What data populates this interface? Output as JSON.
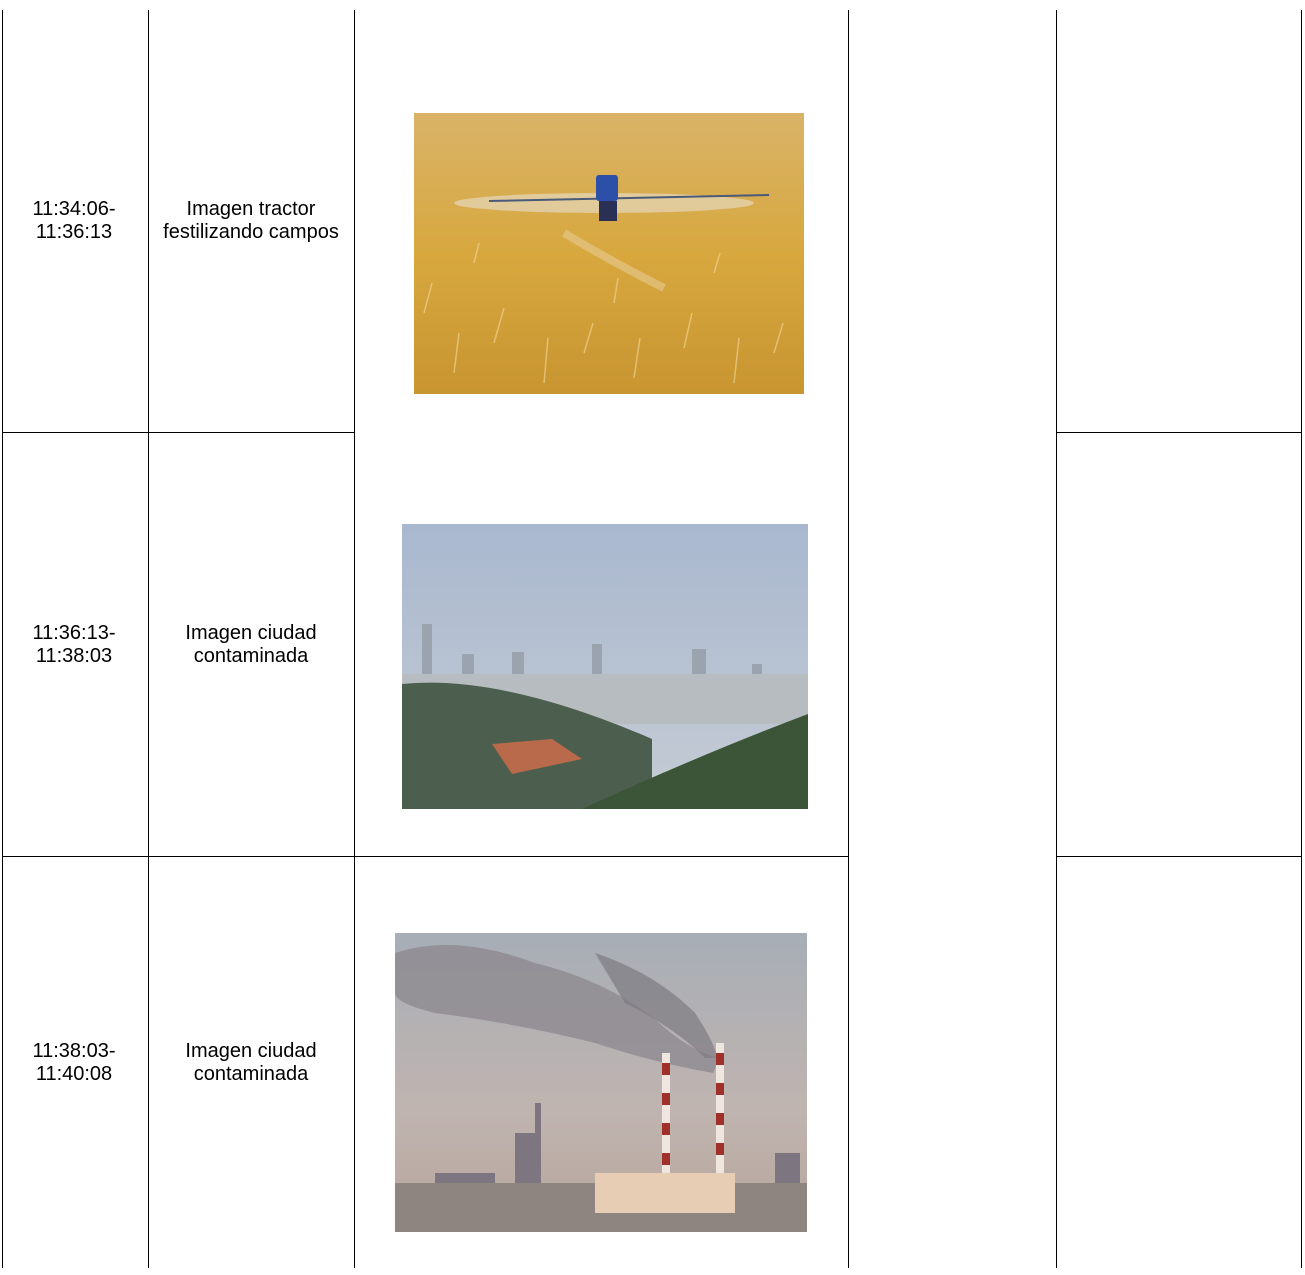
{
  "table": {
    "rows": [
      {
        "time": "11:34:06-11:36:13",
        "description": "Imagen tractor festilizando campos"
      },
      {
        "time": "11:36:13-11:38:03",
        "description": "Imagen ciudad contaminada"
      },
      {
        "time": "11:38:03-11:40:08",
        "description": "Imagen ciudad contaminada"
      }
    ]
  }
}
